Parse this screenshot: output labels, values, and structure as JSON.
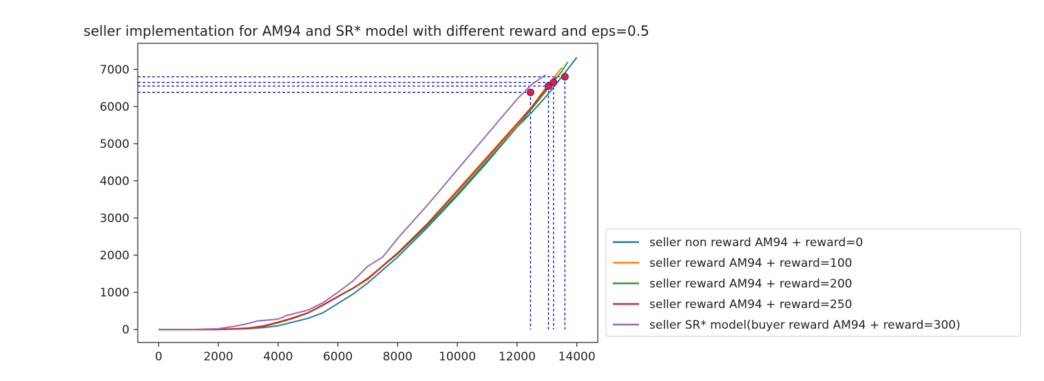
{
  "chart_data": {
    "type": "line",
    "title": "seller implementation for AM94 and SR* model with different reward and eps=0.5",
    "xlabel": "",
    "ylabel": "",
    "xlim": [
      -700,
      14700
    ],
    "ylim": [
      -350,
      7700
    ],
    "xticks": [
      0,
      2000,
      4000,
      6000,
      8000,
      10000,
      12000,
      14000
    ],
    "xtick_labels": [
      "0",
      "2000",
      "4000",
      "6000",
      "8000",
      "10000",
      "12000",
      "14000"
    ],
    "yticks": [
      0,
      1000,
      2000,
      3000,
      4000,
      5000,
      6000,
      7000
    ],
    "ytick_labels": [
      "0",
      "1000",
      "2000",
      "3000",
      "4000",
      "5000",
      "6000",
      "7000"
    ],
    "grid": false,
    "legend_position": "outside right, lower",
    "series": [
      {
        "name": "seller non reward AM94 + reward=0",
        "color": "#1f77b4",
        "x": [
          0,
          1000,
          2000,
          3000,
          3500,
          4000,
          4500,
          5000,
          5500,
          6000,
          6500,
          7000,
          8000,
          9000,
          10000,
          11000,
          12000,
          12500,
          13000,
          13500,
          14000
        ],
        "y": [
          0,
          0,
          0,
          20,
          50,
          100,
          200,
          300,
          450,
          700,
          950,
          1250,
          1950,
          2750,
          3600,
          4500,
          5450,
          5850,
          6300,
          6800,
          7320
        ]
      },
      {
        "name": "seller reward AM94 + reward=100",
        "color": "#ff7f0e",
        "x": [
          0,
          1000,
          2000,
          3000,
          3500,
          4000,
          4500,
          5000,
          5500,
          6000,
          6500,
          7000,
          8000,
          9000,
          10000,
          11000,
          12000,
          12500,
          13000,
          13500
        ],
        "y": [
          0,
          0,
          0,
          40,
          100,
          200,
          320,
          450,
          650,
          880,
          1100,
          1350,
          2050,
          2850,
          3750,
          4650,
          5550,
          6000,
          6550,
          7050
        ]
      },
      {
        "name": "seller reward AM94 + reward=200",
        "color": "#2ca02c",
        "x": [
          0,
          1000,
          2000,
          3000,
          3500,
          4000,
          4500,
          5000,
          5500,
          6000,
          6500,
          7000,
          8000,
          9000,
          10000,
          11000,
          12000,
          12500,
          13000,
          13500,
          13700
        ],
        "y": [
          0,
          0,
          0,
          30,
          80,
          180,
          300,
          440,
          650,
          880,
          1100,
          1380,
          2030,
          2800,
          3650,
          4550,
          5450,
          5950,
          6450,
          6950,
          7200
        ]
      },
      {
        "name": "seller reward AM94 + reward=250",
        "color": "#d62728",
        "x": [
          0,
          1000,
          2000,
          3000,
          3500,
          4000,
          4500,
          5000,
          5500,
          6000,
          6500,
          7000,
          8000,
          9000,
          10000,
          11000,
          12000,
          12500,
          13000,
          13300
        ],
        "y": [
          0,
          0,
          0,
          35,
          90,
          190,
          310,
          450,
          660,
          890,
          1110,
          1370,
          2060,
          2850,
          3720,
          4620,
          5520,
          6000,
          6500,
          6800
        ]
      },
      {
        "name": "seller SR* model(buyer reward AM94 + reward=300)",
        "color": "#9467bd",
        "x": [
          0,
          1000,
          2000,
          2500,
          3000,
          3300,
          3600,
          4000,
          4300,
          4600,
          5000,
          5500,
          6000,
          6500,
          7000,
          7500,
          8000,
          9000,
          10000,
          11000,
          12000,
          12500,
          12950
        ],
        "y": [
          0,
          0,
          20,
          80,
          160,
          230,
          250,
          280,
          380,
          440,
          520,
          720,
          1000,
          1300,
          1700,
          1950,
          2450,
          3350,
          4300,
          5250,
          6200,
          6600,
          6850
        ]
      }
    ],
    "markers": {
      "color": "#e8202a",
      "edge_color": "#2222cc",
      "guide_color": "#0000ee",
      "points": [
        {
          "x": 12450,
          "y": 6380
        },
        {
          "x": 13050,
          "y": 6550
        },
        {
          "x": 13220,
          "y": 6650
        },
        {
          "x": 13600,
          "y": 6800
        }
      ]
    }
  }
}
